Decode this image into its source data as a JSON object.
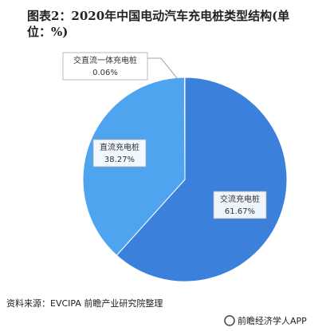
{
  "chart_data": {
    "type": "pie",
    "title": "图表2：2020年中国电动汽车充电桩类型结构(单位：%)",
    "categories": [
      "交流充电桩",
      "直流充电桩",
      "交直流一体充电桩"
    ],
    "values": [
      61.67,
      38.27,
      0.06
    ],
    "value_labels": [
      "61.67%",
      "38.27%",
      "0.06%"
    ],
    "colors": [
      "#3b80db",
      "#4ea4ef",
      "#8cc4f5"
    ],
    "source": "资料来源：EVCIPA 前瞻产业研究院整理",
    "brand": "前瞻经济学人APP"
  }
}
